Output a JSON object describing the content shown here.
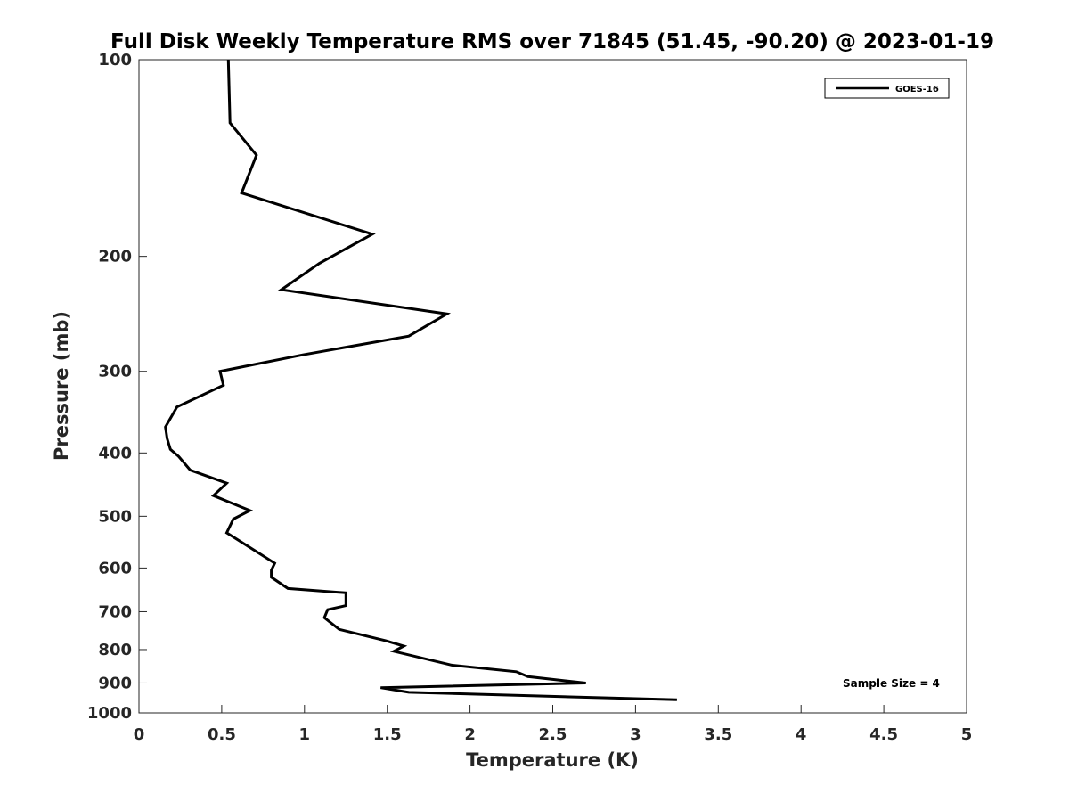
{
  "chart_data": {
    "type": "line",
    "title": "Full Disk Weekly Temperature RMS over 71845 (51.45, -90.20) @ 2023-01-19",
    "xlabel": "Temperature (K)",
    "ylabel": "Pressure (mb)",
    "xlim": [
      0,
      5
    ],
    "ylim": [
      100,
      1000
    ],
    "y_scale": "log",
    "y_reversed": true,
    "xticks": [
      0,
      0.5,
      1,
      1.5,
      2,
      2.5,
      3,
      3.5,
      4,
      4.5,
      5
    ],
    "xtick_labels": [
      "0",
      "0.5",
      "1",
      "1.5",
      "2",
      "2.5",
      "3",
      "3.5",
      "4",
      "4.5",
      "5"
    ],
    "yticks": [
      100,
      200,
      300,
      400,
      500,
      600,
      700,
      800,
      900,
      1000
    ],
    "ytick_labels": [
      "100",
      "200",
      "300",
      "400",
      "500",
      "600",
      "700",
      "800",
      "900",
      "1000"
    ],
    "grid": false,
    "legend_position": "top-right",
    "annotation": "Sample Size = 4",
    "series": [
      {
        "name": "GOES-16",
        "color": "#000000",
        "x": [
          0.54,
          0.55,
          0.71,
          0.62,
          1.41,
          1.09,
          0.86,
          1.86,
          1.63,
          0.99,
          0.49,
          0.51,
          0.23,
          0.16,
          0.17,
          0.19,
          0.24,
          0.31,
          0.53,
          0.45,
          0.67,
          0.57,
          0.53,
          0.82,
          0.8,
          0.8,
          0.9,
          1.25,
          1.25,
          1.14,
          1.12,
          1.21,
          1.49,
          1.6,
          1.54,
          1.89,
          2.28,
          2.35,
          2.7,
          1.46,
          1.63,
          3.25
        ],
        "y": [
          100,
          125,
          140,
          160,
          185,
          205,
          225,
          245,
          265,
          283,
          300,
          315,
          340,
          365,
          380,
          395,
          405,
          425,
          445,
          465,
          490,
          505,
          530,
          590,
          605,
          620,
          645,
          655,
          685,
          695,
          715,
          745,
          775,
          790,
          805,
          845,
          865,
          880,
          900,
          915,
          930,
          955
        ]
      }
    ]
  }
}
